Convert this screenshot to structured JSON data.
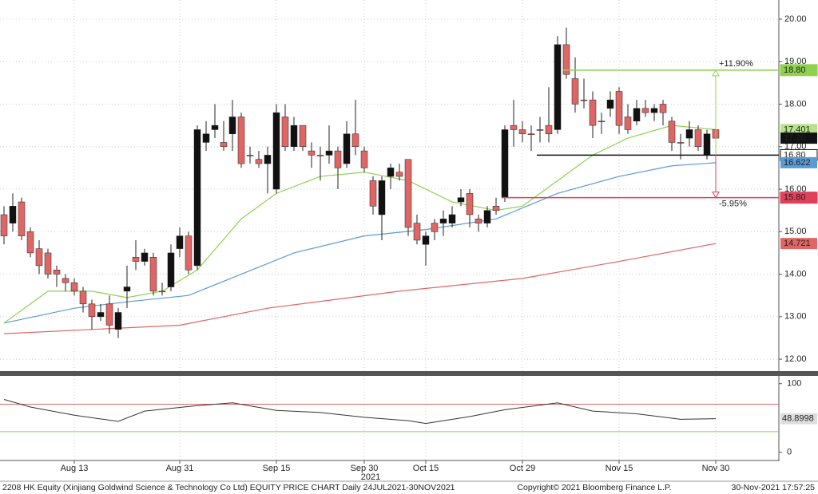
{
  "chart_data": {
    "type": "candlestick",
    "categories": [
      null,
      null,
      null,
      null,
      null,
      null,
      null,
      null,
      "Aug 13",
      null,
      null,
      null,
      null,
      null,
      null,
      null,
      null,
      null,
      null,
      null,
      "Aug 31",
      null,
      null,
      null,
      null,
      null,
      null,
      null,
      null,
      null,
      null,
      "Sep 15",
      null,
      null,
      null,
      null,
      null,
      null,
      null,
      null,
      null,
      "Sep 30",
      null,
      null,
      null,
      null,
      null,
      null,
      "Oct 15",
      null,
      null,
      null,
      null,
      null,
      null,
      null,
      null,
      null,
      null,
      "Oct 29",
      null,
      null,
      null,
      null,
      null,
      null,
      null,
      null,
      null,
      null,
      "Nov 15",
      null,
      null,
      null,
      null,
      null,
      null,
      null,
      null,
      null,
      null,
      "Nov 30"
    ],
    "year_label": "2021",
    "open": [
      15.4,
      15.2,
      15.7,
      15.0,
      14.6,
      14.5,
      14.1,
      13.9,
      13.8,
      13.6,
      13.3,
      13.0,
      13.3,
      12.7,
      13.6,
      14.4,
      14.3,
      14.4,
      13.6,
      13.7,
      14.6,
      14.9,
      14.2,
      17.1,
      17.4,
      17.1,
      17.3,
      17.7,
      16.8,
      16.7,
      16.6,
      16.0,
      17.7,
      17.0,
      17.5,
      16.9,
      16.8,
      16.8,
      16.9,
      16.6,
      17.3,
      16.9,
      16.2,
      15.4,
      16.3,
      16.4,
      16.7,
      15.2,
      14.7,
      15.2,
      15.2,
      15.2,
      15.7,
      15.9,
      15.3,
      15.2,
      15.6,
      15.8,
      17.5,
      17.4,
      17.3,
      17.4,
      17.5,
      17.4,
      19.4,
      18.6,
      18.1,
      18.1,
      17.6,
      17.9,
      18.3,
      17.7,
      17.6,
      17.9,
      17.8,
      18.0,
      17.6,
      17.1,
      17.2,
      17.4,
      16.8,
      17.4
    ],
    "high": [
      15.6,
      15.9,
      15.8,
      15.1,
      14.8,
      14.6,
      14.2,
      14.0,
      13.9,
      13.7,
      13.4,
      13.3,
      13.5,
      13.2,
      14.2,
      14.8,
      14.6,
      14.5,
      13.8,
      14.7,
      15.1,
      15.0,
      17.5,
      17.6,
      18.0,
      17.6,
      18.1,
      17.8,
      17.0,
      16.9,
      17.0,
      18.0,
      18.0,
      17.7,
      17.5,
      17.1,
      17.0,
      17.5,
      17.0,
      17.6,
      18.1,
      17.0,
      16.3,
      16.3,
      16.6,
      16.6,
      16.7,
      15.4,
      15.0,
      15.3,
      15.5,
      15.6,
      16.0,
      16.0,
      15.4,
      15.6,
      15.8,
      17.5,
      18.1,
      17.6,
      17.5,
      17.7,
      18.4,
      19.6,
      19.8,
      19.1,
      18.6,
      18.3,
      17.8,
      18.3,
      18.4,
      18.0,
      18.1,
      18.1,
      18.0,
      18.1,
      17.7,
      17.3,
      17.6,
      17.5,
      17.4,
      17.5
    ],
    "low": [
      14.7,
      15.0,
      14.8,
      14.4,
      14.0,
      13.9,
      13.7,
      13.6,
      13.5,
      13.1,
      12.7,
      12.9,
      12.6,
      12.5,
      13.2,
      14.1,
      14.2,
      13.5,
      13.5,
      13.6,
      14.4,
      14.0,
      14.1,
      16.9,
      17.2,
      16.9,
      16.9,
      16.5,
      16.6,
      16.5,
      15.9,
      15.9,
      16.9,
      16.9,
      16.9,
      16.5,
      16.2,
      16.6,
      16.0,
      16.5,
      16.8,
      16.4,
      15.4,
      14.8,
      16.0,
      16.2,
      14.9,
      14.7,
      14.2,
      14.8,
      14.9,
      15.1,
      15.6,
      15.1,
      15.0,
      15.1,
      15.4,
      15.7,
      17.0,
      17.1,
      16.9,
      17.1,
      17.1,
      17.3,
      18.6,
      17.8,
      17.9,
      17.2,
      17.3,
      17.7,
      17.3,
      17.3,
      17.5,
      17.7,
      17.6,
      17.5,
      16.9,
      16.7,
      17.0,
      16.9,
      16.7,
      17.1
    ],
    "close": [
      14.9,
      15.6,
      14.9,
      14.5,
      14.2,
      14.0,
      14.0,
      13.8,
      13.6,
      13.3,
      13.0,
      13.1,
      12.8,
      13.1,
      13.7,
      14.3,
      14.5,
      13.6,
      13.6,
      14.5,
      14.9,
      14.1,
      17.4,
      17.3,
      17.5,
      17.0,
      17.7,
      16.6,
      16.8,
      16.6,
      16.8,
      17.8,
      17.0,
      17.5,
      17.0,
      16.8,
      16.8,
      16.9,
      16.5,
      17.3,
      17.0,
      16.5,
      15.6,
      16.2,
      16.5,
      16.3,
      15.1,
      14.8,
      14.9,
      15.0,
      15.3,
      15.4,
      15.8,
      15.4,
      15.2,
      15.5,
      15.5,
      17.4,
      17.4,
      17.3,
      17.3,
      17.4,
      17.3,
      19.4,
      18.7,
      18.0,
      18.1,
      17.5,
      17.6,
      18.1,
      17.5,
      17.4,
      17.9,
      17.8,
      17.9,
      17.8,
      17.1,
      17.1,
      17.4,
      17.0,
      17.3,
      17.2
    ],
    "up_color": "#111111",
    "down_color": "#e06666",
    "series": [
      {
        "color": "#8fd14f",
        "x": [
          0,
          5,
          10,
          14,
          18,
          22,
          27,
          31,
          36,
          41,
          46,
          51,
          56,
          59,
          63,
          67,
          71,
          76,
          81
        ],
        "values": [
          12.85,
          13.6,
          13.6,
          13.45,
          13.6,
          14.1,
          15.3,
          15.9,
          16.3,
          16.4,
          16.2,
          15.7,
          15.5,
          15.6,
          16.2,
          16.8,
          17.2,
          17.5,
          17.401
        ]
      },
      {
        "color": "#5b9bd5",
        "x": [
          0,
          8,
          14,
          21,
          27,
          33,
          41,
          48,
          56,
          63,
          70,
          76,
          81
        ],
        "values": [
          12.85,
          13.2,
          13.35,
          13.5,
          14.0,
          14.5,
          14.9,
          15.05,
          15.3,
          15.9,
          16.3,
          16.55,
          16.622
        ]
      },
      {
        "color": "#e06666",
        "x": [
          0,
          20,
          30,
          45,
          59,
          70,
          81
        ],
        "values": [
          12.6,
          12.8,
          13.2,
          13.6,
          13.9,
          14.3,
          14.721
        ]
      }
    ],
    "ylim": [
      11.72,
      20.45
    ],
    "yticks": [
      {
        "value": 12,
        "label": "12.00"
      },
      {
        "value": 13,
        "label": "13.00"
      },
      {
        "value": 14,
        "label": "14.00"
      },
      {
        "value": 15,
        "label": "15.00"
      },
      {
        "value": 16,
        "label": "16.00"
      },
      {
        "value": 17,
        "label": "17.00"
      },
      {
        "value": 18,
        "label": "18.00"
      },
      {
        "value": 19,
        "label": "19.00"
      },
      {
        "value": 20,
        "label": "20.00"
      }
    ],
    "grid": true,
    "levels": [
      {
        "value": 18.8,
        "label": "18.80",
        "color": "#8fd14f"
      },
      {
        "value": 16.8,
        "label": "16.80",
        "color": "#111111"
      },
      {
        "value": 15.8,
        "label": "15.80",
        "color": "#e0405a"
      }
    ],
    "tags": [
      {
        "value": 17.401,
        "label": "17.401",
        "color": "#b6e38a"
      },
      {
        "value": 17.2,
        "label": "17.20",
        "color": "#111111"
      },
      {
        "value": 16.622,
        "label": "16.622",
        "color": "#5b9bd5"
      },
      {
        "value": 14.721,
        "label": "14.721",
        "color": "#e06666"
      }
    ],
    "annotations": [
      "+11.90%",
      "-5.95%"
    ],
    "rsi": {
      "x": [
        0,
        3,
        8,
        13,
        16,
        22,
        26,
        31,
        36,
        41,
        46,
        48,
        53,
        57,
        63,
        67,
        72,
        77,
        81
      ],
      "values": [
        77,
        66,
        54,
        45,
        60,
        68,
        72,
        61,
        58,
        51,
        46,
        42,
        52,
        62,
        72,
        60,
        56,
        48,
        48.8998
      ],
      "value_label": "48.8998",
      "color": "#333333",
      "ylim": [
        -12,
        109
      ],
      "yticks": [
        0,
        100
      ],
      "levels": [
        {
          "value": 70,
          "color": "#e06666"
        },
        {
          "value": 30,
          "color": "#8fd14f"
        }
      ]
    },
    "footer": {
      "left": "2208 HK Equity (Xinjiang Goldwind Science & Technology Co Ltd) EQUITY PRICE CHART  Daily 24JUL2021-30NOV2021",
      "center": "Copyright© 2021 Bloomberg Finance L.P.",
      "right": "30-Nov-2021  17:57:25"
    }
  }
}
